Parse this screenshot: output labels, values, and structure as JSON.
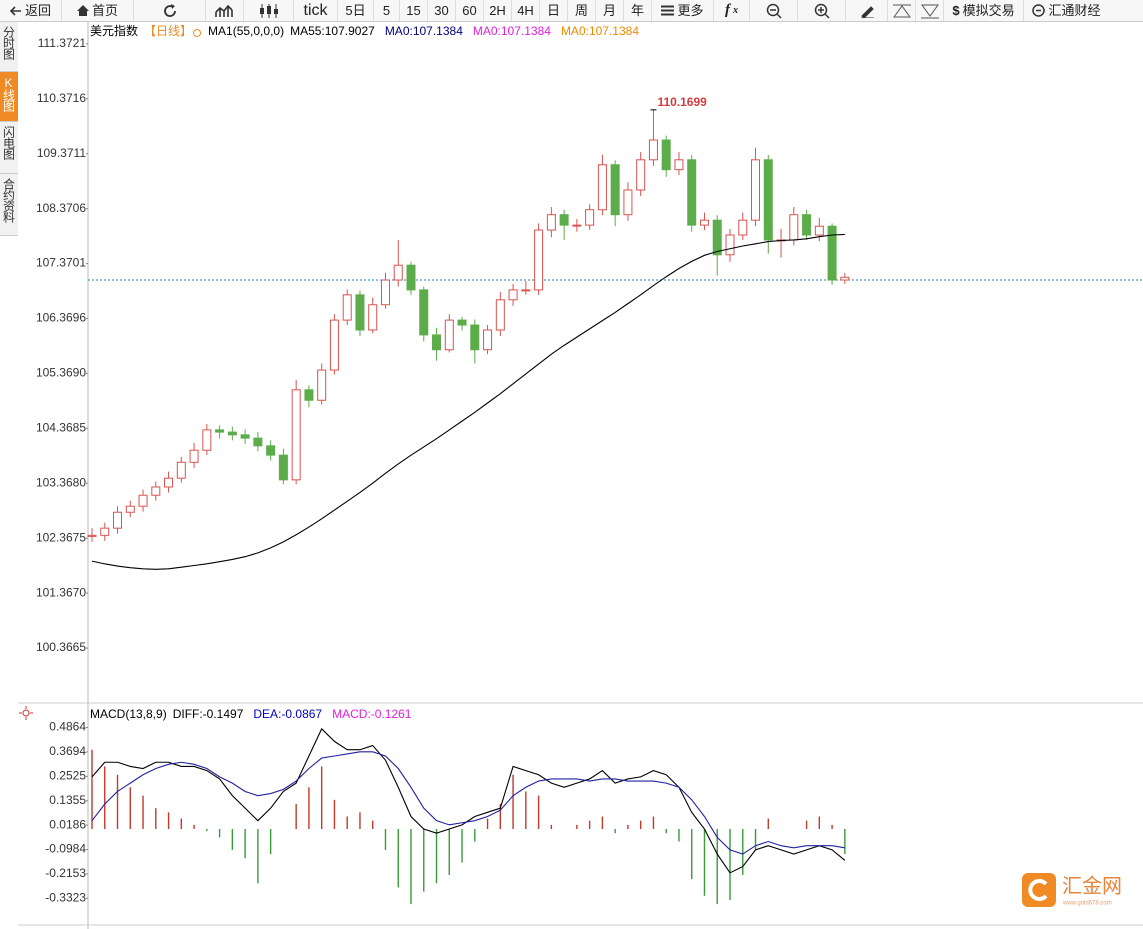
{
  "toolbar": [
    "返回",
    "首页",
    "tick",
    "5日",
    "5",
    "15",
    "30",
    "60",
    "2H",
    "4H",
    "日",
    "周",
    "月",
    "年",
    "更多",
    "模拟交易",
    "汇通财经"
  ],
  "side_tabs": [
    "分时图",
    "K线图",
    "闪电图",
    "合约资料"
  ],
  "watermark": {
    "name": "汇金网",
    "url": "www.gold678.com"
  },
  "chart_data": [
    {
      "type": "candlestick",
      "title": "美元指数",
      "period": "【日线】",
      "ma_setting": "MA1(55,0,0,0)",
      "legend": [
        {
          "text": "MA55:107.9027",
          "color": "#000000"
        },
        {
          "text": "MA0:107.1384",
          "color": "#000080"
        },
        {
          "text": "MA0:107.1384",
          "color": "#e020e0"
        },
        {
          "text": "MA0:107.1384",
          "color": "#f08a00"
        }
      ],
      "ylim": [
        99.42,
        111.77
      ],
      "yticks": [
        111.3721,
        110.3716,
        109.3711,
        108.3706,
        107.3701,
        106.3696,
        {
          "value": 105.369,
          "label": "105.3690"
        },
        104.3685,
        {
          "value": 103.368,
          "label": "103.3680"
        },
        102.3675,
        {
          "value": 101.367,
          "label": "101.3670"
        },
        100.3665
      ],
      "up_color": "#d9534f",
      "down_color": "#5cad4a",
      "ma_color": "#000000",
      "last_price_line": 107.07,
      "high_label": 110.1699,
      "high_index": 44,
      "open": [
        102.4,
        102.42,
        102.55,
        102.84,
        102.95,
        103.15,
        103.3,
        103.46,
        103.75,
        103.97,
        104.34,
        104.3,
        104.25,
        104.19,
        104.05,
        103.88,
        103.43,
        105.07,
        104.88,
        105.43,
        106.34,
        106.8,
        106.16,
        106.62,
        107.07,
        107.34,
        106.89,
        106.07,
        105.8,
        106.34,
        106.25,
        105.8,
        106.16,
        106.71,
        106.89,
        106.89,
        107.98,
        108.26,
        108.07,
        108.07,
        108.35,
        109.17,
        108.26,
        108.71,
        109.26,
        109.62,
        109.08,
        109.26,
        108.07,
        108.16,
        107.53,
        107.89,
        108.16,
        109.26,
        107.8,
        107.8,
        108.26,
        107.89,
        108.05,
        107.07
      ],
      "high": [
        102.55,
        102.65,
        102.95,
        103.05,
        103.25,
        103.4,
        103.58,
        103.85,
        104.1,
        104.45,
        104.42,
        104.4,
        104.35,
        104.3,
        104.15,
        104.0,
        105.25,
        105.15,
        105.55,
        106.45,
        106.9,
        106.88,
        106.75,
        107.2,
        107.8,
        107.4,
        106.95,
        106.2,
        106.45,
        106.4,
        106.35,
        106.25,
        106.85,
        107.0,
        107.05,
        108.1,
        108.4,
        108.35,
        108.18,
        108.45,
        109.35,
        109.25,
        108.85,
        109.4,
        110.17,
        109.7,
        109.4,
        109.35,
        108.3,
        108.25,
        108.0,
        108.3,
        109.48,
        109.35,
        108.0,
        108.4,
        108.35,
        108.2,
        108.1,
        107.2
      ],
      "low": [
        102.3,
        102.32,
        102.45,
        102.75,
        102.85,
        103.05,
        103.2,
        103.38,
        103.65,
        103.88,
        104.18,
        104.15,
        104.08,
        103.95,
        103.78,
        103.35,
        103.35,
        104.75,
        104.8,
        105.35,
        106.25,
        106.05,
        106.1,
        106.55,
        106.95,
        106.8,
        105.95,
        105.6,
        105.75,
        106.15,
        105.55,
        105.72,
        106.05,
        106.6,
        106.8,
        106.8,
        107.85,
        107.8,
        107.95,
        107.98,
        108.25,
        108.05,
        108.15,
        108.6,
        109.15,
        108.95,
        108.98,
        107.95,
        107.98,
        107.15,
        107.4,
        107.8,
        108.05,
        107.55,
        107.48,
        107.7,
        107.8,
        107.78,
        106.98,
        107.0
      ],
      "close": [
        102.42,
        102.55,
        102.84,
        102.95,
        103.15,
        103.3,
        103.46,
        103.75,
        103.97,
        104.34,
        104.3,
        104.25,
        104.19,
        104.05,
        103.88,
        103.43,
        105.07,
        104.88,
        105.43,
        106.34,
        106.8,
        106.16,
        106.62,
        107.07,
        107.34,
        106.89,
        106.07,
        105.8,
        106.34,
        106.25,
        105.8,
        106.16,
        106.71,
        106.89,
        106.89,
        107.98,
        108.26,
        108.07,
        108.07,
        108.35,
        109.17,
        108.26,
        108.71,
        109.26,
        109.62,
        109.08,
        109.26,
        108.07,
        108.16,
        107.53,
        107.89,
        108.16,
        109.26,
        107.8,
        107.8,
        108.26,
        107.89,
        108.05,
        107.07,
        107.12
      ],
      "ma55": [
        101.95,
        101.9,
        101.86,
        101.83,
        101.81,
        101.8,
        101.81,
        101.84,
        101.87,
        101.9,
        101.94,
        101.98,
        102.03,
        102.1,
        102.19,
        102.3,
        102.43,
        102.57,
        102.72,
        102.88,
        103.04,
        103.2,
        103.37,
        103.55,
        103.72,
        103.88,
        104.03,
        104.18,
        104.34,
        104.5,
        104.66,
        104.83,
        105.0,
        105.18,
        105.36,
        105.54,
        105.72,
        105.88,
        106.03,
        106.18,
        106.33,
        106.48,
        106.64,
        106.8,
        106.97,
        107.13,
        107.28,
        107.41,
        107.52,
        107.59,
        107.64,
        107.69,
        107.73,
        107.77,
        107.79,
        107.8,
        107.82,
        107.86,
        107.89,
        107.9
      ]
    },
    {
      "type": "macd",
      "title": "MACD(13,8,9)",
      "legend": [
        {
          "text": "DIFF:-0.1497",
          "color": "#000000"
        },
        {
          "text": "DEA:-0.0867",
          "color": "#0000c0"
        },
        {
          "text": "MACD:-0.1261",
          "color": "#e020e0"
        }
      ],
      "ylim": [
        -0.46,
        0.58
      ],
      "yticks": [
        0.4864,
        0.3694,
        0.2525,
        0.1355,
        0.0186,
        -0.0984,
        -0.2153,
        -0.3323
      ],
      "up_color": "#c0392b",
      "down_color": "#3a9a3a",
      "diff_color": "#000000",
      "dea_color": "#2020a0",
      "macd": [
        0.38,
        0.3,
        0.26,
        0.2,
        0.16,
        0.1,
        0.08,
        0.05,
        0.02,
        -0.01,
        -0.04,
        -0.1,
        -0.14,
        -0.26,
        -0.12,
        0.0,
        0.12,
        0.2,
        0.3,
        0.14,
        0.06,
        0.08,
        0.04,
        -0.1,
        -0.28,
        -0.36,
        -0.3,
        -0.26,
        -0.22,
        -0.16,
        -0.06,
        0.05,
        0.12,
        0.26,
        0.18,
        0.16,
        0.02,
        0.0,
        0.02,
        0.04,
        0.06,
        -0.02,
        0.02,
        0.04,
        0.06,
        -0.02,
        -0.06,
        -0.24,
        -0.32,
        -0.36,
        -0.34,
        -0.22,
        -0.1,
        0.05,
        0.0,
        0.0,
        0.04,
        0.06,
        0.02,
        -0.12
      ],
      "diff": [
        0.25,
        0.32,
        0.32,
        0.3,
        0.29,
        0.32,
        0.32,
        0.3,
        0.3,
        0.28,
        0.24,
        0.16,
        0.1,
        0.04,
        0.1,
        0.18,
        0.22,
        0.35,
        0.48,
        0.42,
        0.38,
        0.38,
        0.4,
        0.33,
        0.2,
        0.06,
        0.0,
        -0.02,
        0.0,
        0.02,
        0.06,
        0.08,
        0.1,
        0.3,
        0.28,
        0.26,
        0.22,
        0.2,
        0.22,
        0.24,
        0.28,
        0.22,
        0.24,
        0.25,
        0.28,
        0.26,
        0.2,
        0.08,
        0.0,
        -0.12,
        -0.21,
        -0.18,
        -0.1,
        -0.08,
        -0.1,
        -0.12,
        -0.1,
        -0.08,
        -0.1,
        -0.15
      ],
      "dea": [
        0.04,
        0.12,
        0.18,
        0.22,
        0.26,
        0.29,
        0.31,
        0.32,
        0.31,
        0.29,
        0.25,
        0.22,
        0.18,
        0.16,
        0.17,
        0.19,
        0.23,
        0.29,
        0.34,
        0.35,
        0.36,
        0.37,
        0.37,
        0.35,
        0.29,
        0.2,
        0.1,
        0.04,
        0.02,
        0.03,
        0.04,
        0.06,
        0.09,
        0.16,
        0.2,
        0.23,
        0.24,
        0.24,
        0.24,
        0.23,
        0.24,
        0.24,
        0.23,
        0.23,
        0.23,
        0.22,
        0.2,
        0.14,
        0.06,
        -0.04,
        -0.1,
        -0.12,
        -0.08,
        -0.06,
        -0.08,
        -0.09,
        -0.08,
        -0.08,
        -0.08,
        -0.09
      ]
    }
  ]
}
